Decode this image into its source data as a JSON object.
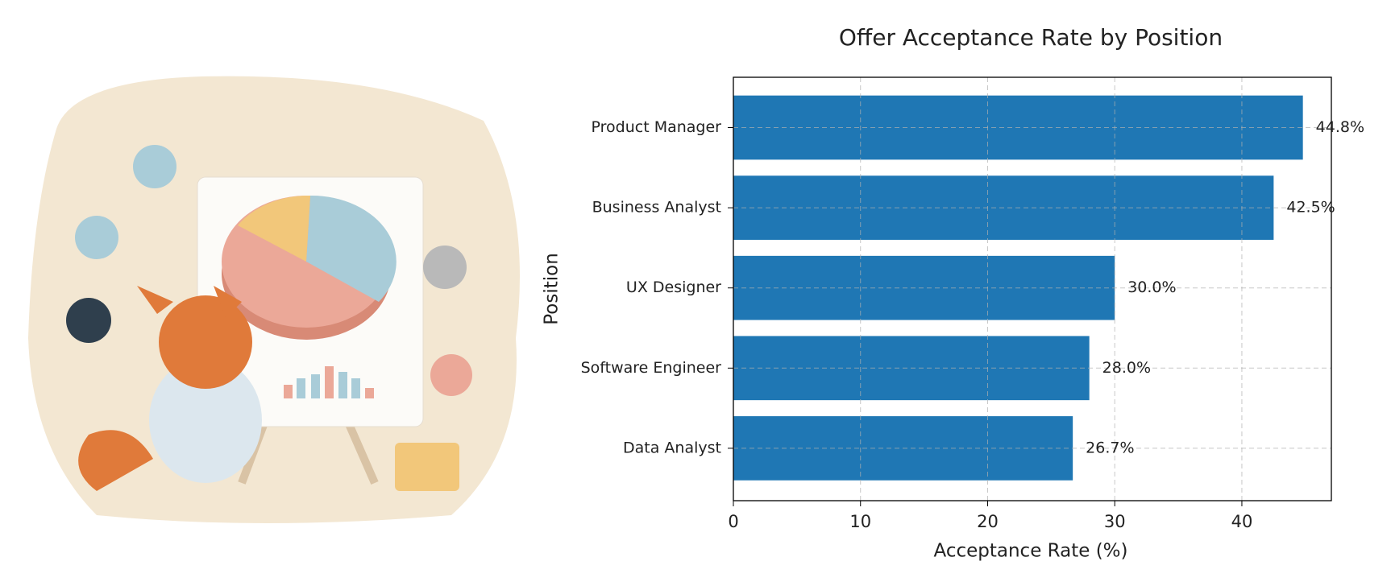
{
  "chart_data": {
    "type": "barh",
    "title": "Offer Acceptance Rate by Position",
    "xlabel": "Acceptance Rate (%)",
    "ylabel": "Position",
    "categories": [
      "Product Manager",
      "Business Analyst",
      "UX Designer",
      "Software Engineer",
      "Data Analyst"
    ],
    "values": [
      44.8,
      42.5,
      30.0,
      28.0,
      26.7
    ],
    "value_labels": [
      "44.8%",
      "42.5%",
      "30.0%",
      "28.0%",
      "26.7%"
    ],
    "color": "#1f77b4",
    "xlim": [
      0,
      47.04
    ],
    "xticks": [
      0,
      10,
      20,
      30,
      40
    ],
    "grid": true
  }
}
